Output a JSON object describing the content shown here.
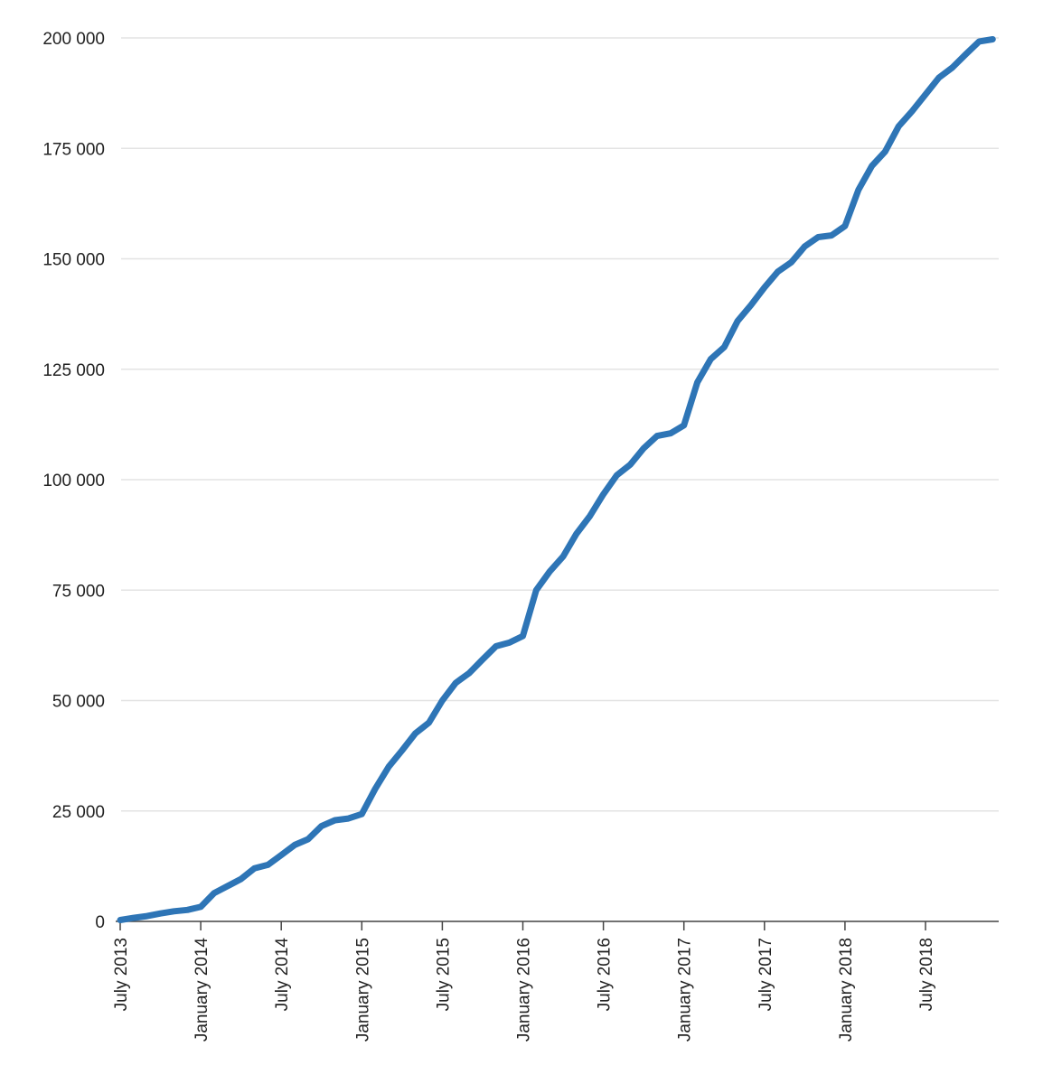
{
  "chart_data": {
    "type": "line",
    "title": "",
    "xlabel": "",
    "ylabel": "",
    "ylim": [
      0,
      200000
    ],
    "grid": "horizontal",
    "y_ticks": [
      {
        "value": 0,
        "label": "0"
      },
      {
        "value": 25000,
        "label": "25 000"
      },
      {
        "value": 50000,
        "label": "50 000"
      },
      {
        "value": 75000,
        "label": "75 000"
      },
      {
        "value": 100000,
        "label": "100 000"
      },
      {
        "value": 125000,
        "label": "125 000"
      },
      {
        "value": 150000,
        "label": "150 000"
      },
      {
        "value": 175000,
        "label": "175 000"
      },
      {
        "value": 200000,
        "label": "200 000"
      }
    ],
    "x_ticks": [
      {
        "date": "2013-07",
        "label": "July 2013"
      },
      {
        "date": "2014-01",
        "label": "January 2014"
      },
      {
        "date": "2014-07",
        "label": "July 2014"
      },
      {
        "date": "2015-01",
        "label": "January 2015"
      },
      {
        "date": "2015-07",
        "label": "July 2015"
      },
      {
        "date": "2016-01",
        "label": "January 2016"
      },
      {
        "date": "2016-07",
        "label": "July 2016"
      },
      {
        "date": "2017-01",
        "label": "January 2017"
      },
      {
        "date": "2017-07",
        "label": "July 2017"
      },
      {
        "date": "2018-01",
        "label": "January 2018"
      },
      {
        "date": "2018-07",
        "label": "July 2018"
      }
    ],
    "series": [
      {
        "color": "#2e75b6",
        "x": [
          "2013-07",
          "2013-08",
          "2013-09",
          "2013-10",
          "2013-11",
          "2013-12",
          "2014-01",
          "2014-02",
          "2014-03",
          "2014-04",
          "2014-05",
          "2014-06",
          "2014-07",
          "2014-08",
          "2014-09",
          "2014-10",
          "2014-11",
          "2014-12",
          "2015-01",
          "2015-02",
          "2015-03",
          "2015-04",
          "2015-05",
          "2015-06",
          "2015-07",
          "2015-08",
          "2015-09",
          "2015-10",
          "2015-11",
          "2015-12",
          "2016-01",
          "2016-02",
          "2016-03",
          "2016-04",
          "2016-05",
          "2016-06",
          "2016-07",
          "2016-08",
          "2016-09",
          "2016-10",
          "2016-11",
          "2016-12",
          "2017-01",
          "2017-02",
          "2017-03",
          "2017-04",
          "2017-05",
          "2017-06",
          "2017-07",
          "2017-08",
          "2017-09",
          "2017-10",
          "2017-11",
          "2017-12",
          "2018-01",
          "2018-02",
          "2018-03",
          "2018-04",
          "2018-05",
          "2018-06",
          "2018-07",
          "2018-08",
          "2018-09",
          "2018-10",
          "2018-11",
          "2018-12"
        ],
        "values": [
          300,
          800,
          1200,
          1800,
          2300,
          2600,
          3300,
          6400,
          8000,
          9600,
          12000,
          12800,
          15000,
          17300,
          18600,
          21600,
          22900,
          23300,
          24300,
          30000,
          35000,
          38700,
          42600,
          45000,
          50000,
          54000,
          56200,
          59300,
          62300,
          63100,
          64600,
          75000,
          79200,
          82600,
          87800,
          91800,
          96700,
          101000,
          103400,
          107100,
          109900,
          110500,
          112300,
          122000,
          127300,
          130000,
          135900,
          139500,
          143500,
          147100,
          149200,
          152800,
          154900,
          155300,
          157400,
          165600,
          171000,
          174300,
          180000,
          183400,
          187200,
          191000,
          193300,
          196300,
          199200,
          199700
        ]
      }
    ]
  }
}
